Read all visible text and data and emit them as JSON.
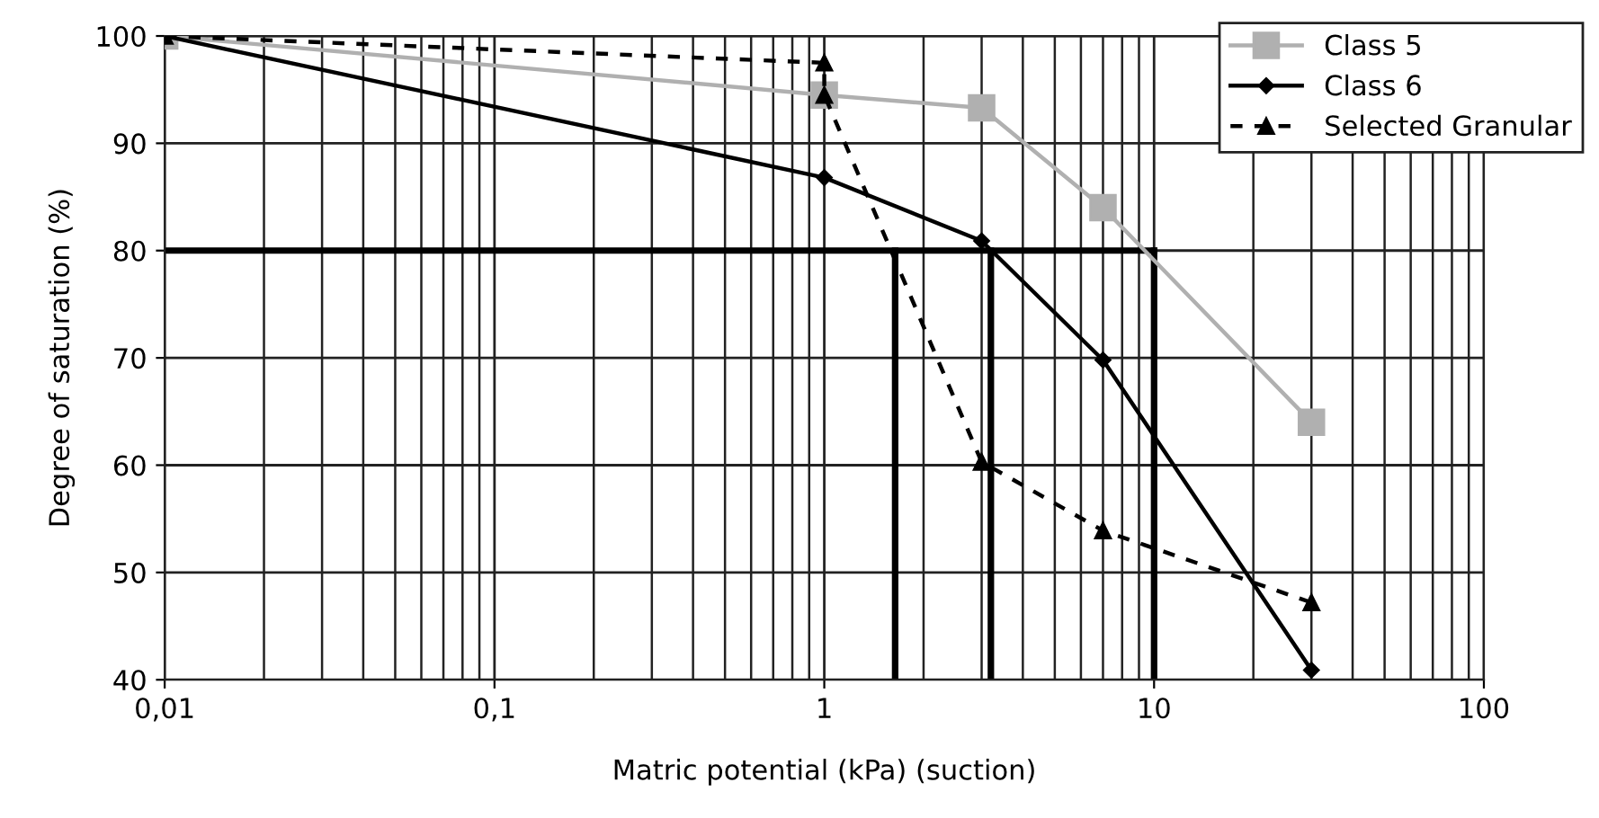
{
  "chart_data": {
    "type": "line",
    "xlabel": "Matric potential (kPa) (suction)",
    "ylabel": "Degree of saturation (%)",
    "log": "x",
    "xlim": [
      0.01,
      100
    ],
    "xticks": [
      {
        "value": 0.01,
        "label": "0,01"
      },
      {
        "value": 0.1,
        "label": "0,1"
      },
      1,
      10,
      100
    ],
    "ylim": [
      40,
      100
    ],
    "yticks": [
      40,
      50,
      60,
      70,
      80,
      90,
      100
    ],
    "grid": true,
    "legend": "top right",
    "series": [
      {
        "name": "Class 5",
        "color": "#b0b0b0",
        "marker": "square",
        "line_style": "solid",
        "x": [
          0.01,
          1,
          3,
          7,
          30
        ],
        "values": [
          100,
          94.5,
          93.3,
          84,
          64
        ]
      },
      {
        "name": "Class 6",
        "color": "#000000",
        "marker": "diamond",
        "line_style": "solid",
        "x": [
          0.01,
          1,
          3,
          7,
          30
        ],
        "values": [
          100,
          86.8,
          80.9,
          69.8,
          40.9
        ]
      },
      {
        "name": "Selected Granular",
        "color": "#000000",
        "marker": "triangle",
        "line_style": "dashed",
        "x": [
          0.01,
          1,
          1,
          3,
          7,
          30
        ],
        "values": [
          100,
          97.5,
          94.5,
          60.3,
          53.9,
          47.2
        ]
      },
      {
        "color": "#000000",
        "marker": "none",
        "line_style": "solid",
        "x": [
          0.01,
          10
        ],
        "values": [
          80,
          80
        ]
      },
      {
        "color": "#000000",
        "marker": "none",
        "line_style": "solid",
        "x": [
          1.64,
          1.64
        ],
        "values": [
          40,
          80
        ]
      },
      {
        "color": "#000000",
        "marker": "none",
        "line_style": "solid",
        "x": [
          3.2,
          3.2
        ],
        "values": [
          40,
          80
        ]
      },
      {
        "color": "#000000",
        "marker": "none",
        "line_style": "solid",
        "x": [
          10,
          10
        ],
        "values": [
          40,
          80
        ]
      }
    ]
  }
}
